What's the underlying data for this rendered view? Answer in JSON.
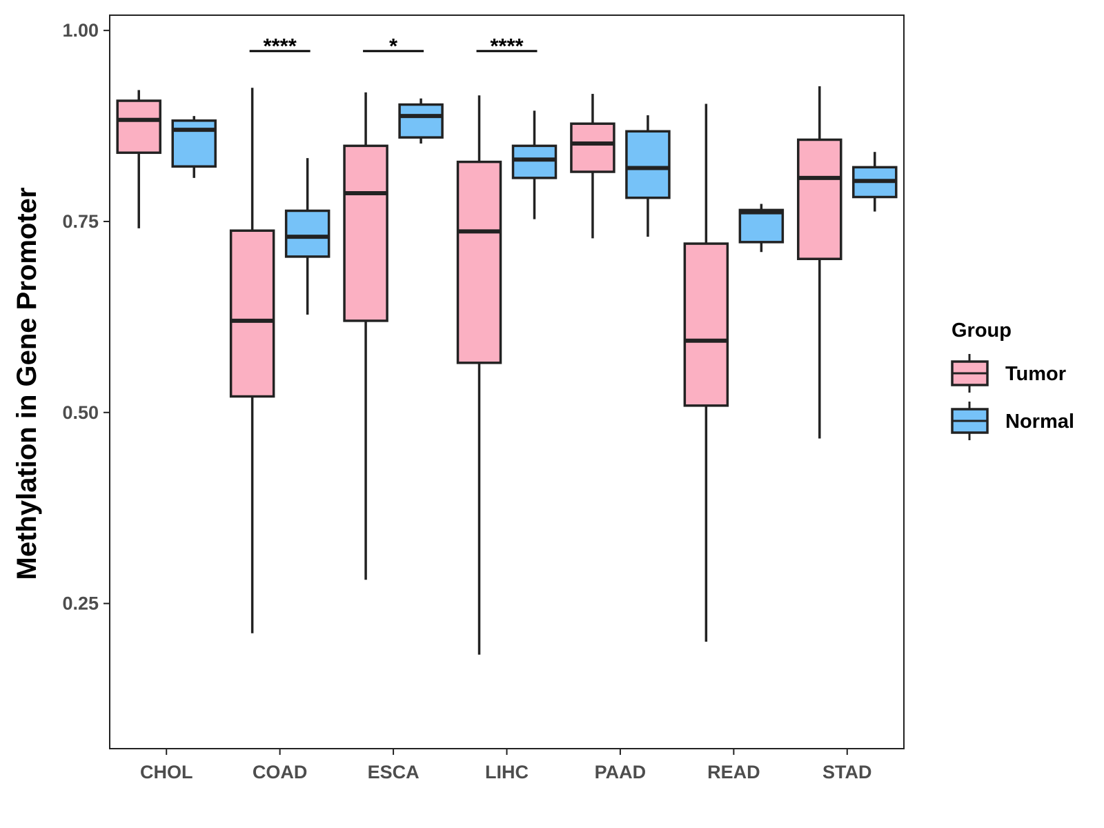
{
  "chart_data": {
    "type": "boxplot",
    "title": "",
    "xlabel": "",
    "ylabel": "Methylation in Gene Promoter",
    "ylim": [
      0.06,
      1.02
    ],
    "yticks": [
      0.25,
      0.5,
      0.75,
      1.0
    ],
    "ytick_labels": [
      "0.25",
      "0.50",
      "0.75",
      "1.00"
    ],
    "categories": [
      "CHOL",
      "COAD",
      "ESCA",
      "LIHC",
      "PAAD",
      "READ",
      "STAD"
    ],
    "legend": {
      "title": "Group",
      "position": "right",
      "entries": [
        {
          "name": "Tumor",
          "color": "#FBB0C2"
        },
        {
          "name": "Normal",
          "color": "#76C2F8"
        }
      ]
    },
    "series": [
      {
        "name": "Tumor",
        "color": "#FBB0C2",
        "boxes": [
          {
            "category": "CHOL",
            "whisker_low": 0.741,
            "q1": 0.84,
            "median": 0.883,
            "q3": 0.908,
            "whisker_high": 0.922
          },
          {
            "category": "COAD",
            "whisker_low": 0.211,
            "q1": 0.521,
            "median": 0.62,
            "q3": 0.738,
            "whisker_high": 0.925
          },
          {
            "category": "ESCA",
            "whisker_low": 0.281,
            "q1": 0.62,
            "median": 0.787,
            "q3": 0.849,
            "whisker_high": 0.919
          },
          {
            "category": "LIHC",
            "whisker_low": 0.183,
            "q1": 0.565,
            "median": 0.737,
            "q3": 0.828,
            "whisker_high": 0.915
          },
          {
            "category": "PAAD",
            "whisker_low": 0.728,
            "q1": 0.815,
            "median": 0.852,
            "q3": 0.878,
            "whisker_high": 0.917
          },
          {
            "category": "READ",
            "whisker_low": 0.2,
            "q1": 0.509,
            "median": 0.594,
            "q3": 0.721,
            "whisker_high": 0.904
          },
          {
            "category": "STAD",
            "whisker_low": 0.466,
            "q1": 0.701,
            "median": 0.807,
            "q3": 0.857,
            "whisker_high": 0.927
          }
        ]
      },
      {
        "name": "Normal",
        "color": "#76C2F8",
        "boxes": [
          {
            "category": "CHOL",
            "whisker_low": 0.807,
            "q1": 0.822,
            "median": 0.87,
            "q3": 0.882,
            "whisker_high": 0.888
          },
          {
            "category": "COAD",
            "whisker_low": 0.628,
            "q1": 0.704,
            "median": 0.73,
            "q3": 0.764,
            "whisker_high": 0.833
          },
          {
            "category": "ESCA",
            "whisker_low": 0.852,
            "q1": 0.86,
            "median": 0.888,
            "q3": 0.903,
            "whisker_high": 0.911
          },
          {
            "category": "LIHC",
            "whisker_low": 0.753,
            "q1": 0.807,
            "median": 0.831,
            "q3": 0.849,
            "whisker_high": 0.895
          },
          {
            "category": "PAAD",
            "whisker_low": 0.73,
            "q1": 0.781,
            "median": 0.82,
            "q3": 0.868,
            "whisker_high": 0.889
          },
          {
            "category": "READ",
            "whisker_low": 0.71,
            "q1": 0.723,
            "median": 0.762,
            "q3": 0.765,
            "whisker_high": 0.773
          },
          {
            "category": "STAD",
            "whisker_low": 0.763,
            "q1": 0.782,
            "median": 0.803,
            "q3": 0.821,
            "whisker_high": 0.841
          }
        ]
      }
    ],
    "annotations": [
      {
        "category": "COAD",
        "label": "****",
        "y": 0.973
      },
      {
        "category": "ESCA",
        "label": "*",
        "y": 0.973
      },
      {
        "category": "LIHC",
        "label": "****",
        "y": 0.973
      }
    ]
  }
}
